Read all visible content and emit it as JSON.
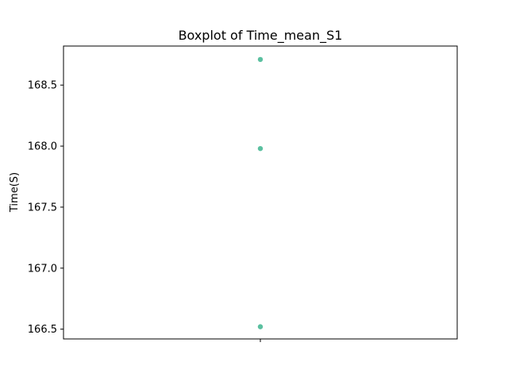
{
  "chart_data": {
    "type": "scatter",
    "title": "Boxplot of Time_mean_S1",
    "xlabel": "",
    "ylabel": "Time(S)",
    "x_categories": [
      ""
    ],
    "y_values": [
      168.71,
      167.98,
      166.52
    ],
    "ylim": [
      166.42,
      168.82
    ],
    "yticks": [
      166.5,
      167.0,
      167.5,
      168.0,
      168.5
    ],
    "ytick_labels": [
      "166.5",
      "167.0",
      "167.5",
      "168.0",
      "168.5"
    ],
    "grid": false,
    "point_color": "#5bc0a0",
    "legend": "none"
  }
}
